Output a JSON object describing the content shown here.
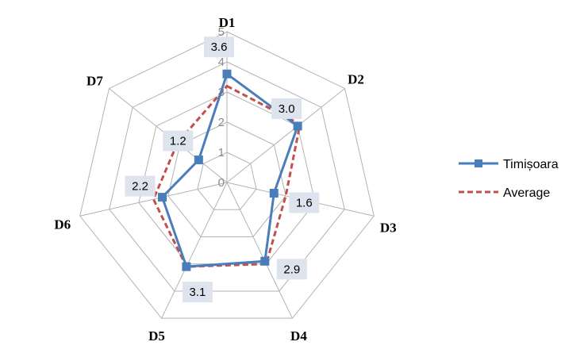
{
  "chart_data": {
    "type": "radar",
    "title": "",
    "categories": [
      "D1",
      "D2",
      "D3",
      "D4",
      "D5",
      "D6",
      "D7"
    ],
    "rlim": [
      0,
      5
    ],
    "rticks": [
      "0",
      "1",
      "2",
      "3",
      "4",
      "5"
    ],
    "grid": true,
    "legend_position": "right",
    "series": [
      {
        "name": "Timișoara",
        "values": [
          3.6,
          3.0,
          1.6,
          2.9,
          3.1,
          2.2,
          1.2
        ],
        "data_labels": [
          "3.6",
          "3.0",
          "1.6",
          "2.9",
          "3.1",
          "2.2",
          "1.2"
        ],
        "color": "#4a7ebb",
        "style": "solid-square-markers"
      },
      {
        "name": "Average",
        "values": [
          3.2,
          3.1,
          2.0,
          3.0,
          3.1,
          2.5,
          2.1
        ],
        "color": "#c0504d",
        "style": "dashed"
      }
    ]
  }
}
